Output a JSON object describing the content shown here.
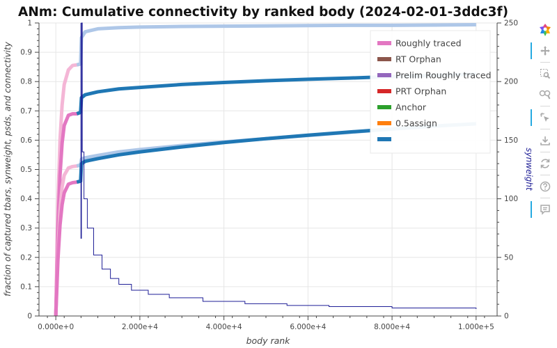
{
  "chart_data": {
    "type": "line",
    "title": "ANm: Cumulative connectivity by ranked body (2024-02-01-3ddc3f)",
    "xlabel": "body rank",
    "ylabel_left": "fraction of captured tbars, synweight, psds, and connectivity",
    "ylabel_right": "synweight",
    "xlim": [
      -4000,
      105000
    ],
    "ylim_left": [
      0,
      1
    ],
    "ylim_right": [
      0,
      250
    ],
    "x_ticks": [
      0,
      20000,
      40000,
      60000,
      80000,
      100000
    ],
    "x_tick_labels": [
      "0.000e+0",
      "2.000e+4",
      "4.000e+4",
      "6.000e+4",
      "8.000e+4",
      "1.000e+5"
    ],
    "y_ticks_left": [
      0,
      0.1,
      0.2,
      0.3,
      0.4,
      0.5,
      0.6,
      0.7,
      0.8,
      0.9,
      1
    ],
    "y_tick_labels_left": [
      "0",
      "0.1",
      "0.2",
      "0.3",
      "0.4",
      "0.5",
      "0.6",
      "0.7",
      "0.8",
      "0.9",
      "1"
    ],
    "y_ticks_right": [
      0,
      50,
      100,
      150,
      200,
      250
    ],
    "y_tick_labels_right": [
      "0",
      "50",
      "100",
      "150",
      "200",
      "250"
    ],
    "grid": true,
    "legend_position": "top-right",
    "legend": [
      {
        "label": "Roughly traced",
        "color": "#e377c2"
      },
      {
        "label": "RT Orphan",
        "color": "#8c564b"
      },
      {
        "label": "Prelim Roughly traced",
        "color": "#9467bd"
      },
      {
        "label": "PRT Orphan",
        "color": "#d62728"
      },
      {
        "label": "Anchor",
        "color": "#2ca02c"
      },
      {
        "label": "0.5assign",
        "color": "#ff7f0e"
      },
      {
        "label": "",
        "color": "#1f77b4"
      }
    ],
    "series": [
      {
        "axis": "left",
        "color_rt": "#f4b6d6",
        "color_anchor": "#aec7e8",
        "color_tail": "#aec7e8",
        "x": [
          0,
          500,
          1000,
          1500,
          2000,
          3000,
          4000,
          5000,
          5900,
          6100,
          7000,
          10000,
          15000,
          20000,
          30000,
          40000,
          50000,
          60000,
          70000,
          80000,
          90000,
          100000
        ],
        "y": [
          0,
          0.38,
          0.6,
          0.72,
          0.79,
          0.84,
          0.855,
          0.857,
          0.86,
          0.95,
          0.97,
          0.98,
          0.984,
          0.986,
          0.988,
          0.989,
          0.99,
          0.991,
          0.992,
          0.992,
          0.993,
          0.994
        ]
      },
      {
        "axis": "left",
        "color_rt": "#e377c2",
        "color_anchor": "#1f77b4",
        "color_tail": "#1f77b4",
        "x": [
          0,
          500,
          1000,
          1500,
          2000,
          3000,
          4000,
          5000,
          5900,
          6100,
          7000,
          10000,
          15000,
          20000,
          30000,
          40000,
          50000,
          60000,
          70000,
          80000,
          90000,
          100000
        ],
        "y": [
          0,
          0.3,
          0.48,
          0.59,
          0.65,
          0.685,
          0.69,
          0.69,
          0.695,
          0.745,
          0.755,
          0.765,
          0.775,
          0.78,
          0.79,
          0.797,
          0.803,
          0.808,
          0.812,
          0.817,
          0.821,
          0.825
        ]
      },
      {
        "axis": "left",
        "color_rt": "#f4b6d6",
        "color_anchor": "#aec7e8",
        "color_tail": "#aec7e8",
        "x": [
          0,
          500,
          1000,
          1500,
          2000,
          3000,
          4000,
          5000,
          5900,
          6100,
          7000,
          10000,
          15000,
          20000,
          30000,
          40000,
          50000,
          60000,
          70000,
          80000,
          90000,
          100000
        ],
        "y": [
          0,
          0.22,
          0.36,
          0.44,
          0.48,
          0.505,
          0.51,
          0.512,
          0.515,
          0.535,
          0.54,
          0.548,
          0.56,
          0.568,
          0.582,
          0.594,
          0.605,
          0.616,
          0.627,
          0.638,
          0.648,
          0.656
        ]
      },
      {
        "axis": "left",
        "color_rt": "#e377c2",
        "color_anchor": "#1f77b4",
        "color_tail": "#1f77b4",
        "x": [
          0,
          500,
          1000,
          1500,
          2000,
          3000,
          4000,
          5000,
          5900,
          6100,
          7000,
          10000,
          15000,
          20000,
          30000,
          40000,
          50000,
          60000,
          70000,
          80000,
          90000,
          100000
        ],
        "y": [
          0,
          0.19,
          0.31,
          0.38,
          0.42,
          0.45,
          0.455,
          0.457,
          0.46,
          0.52,
          0.528,
          0.537,
          0.55,
          0.56,
          0.577,
          0.592,
          0.605,
          0.617,
          0.628,
          0.638,
          0.648,
          0.656
        ]
      },
      {
        "axis": "right",
        "name": "synweight",
        "color": "#1e1e96",
        "x": [
          6100,
          6100,
          6300,
          6700,
          7500,
          9000,
          11000,
          13000,
          15000,
          18000,
          22000,
          27000,
          35000,
          45000,
          55000,
          65000,
          80000,
          100000
        ],
        "y": [
          66,
          250,
          140,
          100,
          75,
          52,
          40,
          32,
          27,
          22,
          18.5,
          15.5,
          12.5,
          10.5,
          9,
          8,
          6.8,
          6
        ]
      }
    ],
    "vline": {
      "x": 6000,
      "color": "#1e1e96",
      "y_range_right": [
        66,
        250
      ]
    }
  },
  "toolbar": [
    {
      "name": "bokeh-logo",
      "icon": "logo-icon",
      "active": false
    },
    {
      "name": "pan-tool",
      "icon": "pan-icon",
      "active": true
    },
    {
      "name": "box-zoom-tool",
      "icon": "box-zoom-icon",
      "active": false
    },
    {
      "name": "wheel-zoom-tool",
      "icon": "wheel-zoom-icon",
      "active": false
    },
    {
      "name": "tap-tool",
      "icon": "tap-icon",
      "active": true
    },
    {
      "name": "save-tool",
      "icon": "save-icon",
      "active": false
    },
    {
      "name": "reset-tool",
      "icon": "reset-icon",
      "active": false
    },
    {
      "name": "help-tool",
      "icon": "help-icon",
      "active": false
    },
    {
      "name": "hover-tool",
      "icon": "hover-icon",
      "active": true
    }
  ]
}
